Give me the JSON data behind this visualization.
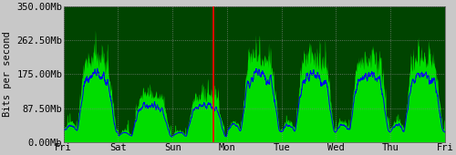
{
  "title": "",
  "ylabel": "Bits per second",
  "xlabel": "",
  "bg_color": "#c8c8c8",
  "plot_bg_color": "#004400",
  "fill_color": "#00dd00",
  "line_color": "#0000ee",
  "red_line_color": "#ff0000",
  "grid_color": "#888888",
  "tick_label_color": "#000000",
  "yticks": [
    0,
    87500000,
    175000000,
    262500000,
    350000000
  ],
  "ytick_labels": [
    "0.00Mb",
    "87.50Mb",
    "175.00Mb",
    "262.50Mb",
    "350.00Mb"
  ],
  "xtick_labels": [
    "Fri",
    "Sat",
    "Sun",
    "Mon",
    "Tue",
    "Wed",
    "Thu",
    "Fri"
  ],
  "xtick_positions": [
    0,
    1,
    2,
    3,
    4,
    5,
    6,
    7
  ],
  "red_line_x": 2.75,
  "ymax": 350000000,
  "ymin": 0,
  "xmin": 0,
  "xmax": 7,
  "num_points": 2000,
  "font_family": "monospace",
  "font_size": 7.5,
  "figwidth": 5.0,
  "figheight": 1.7,
  "dpi": 100
}
